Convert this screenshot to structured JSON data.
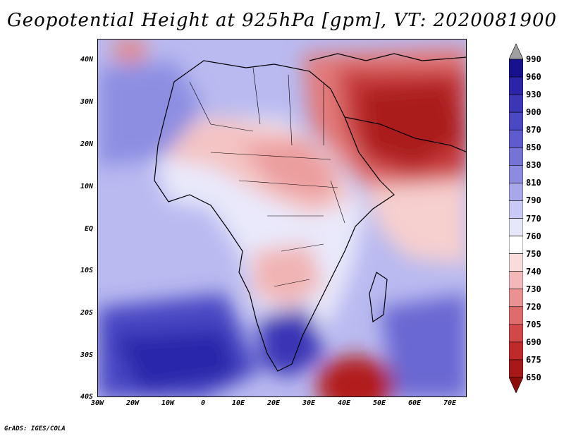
{
  "title": "Geopotential Height at 925hPa [gpm], VT: 2020081900",
  "credit": "GrADS: IGES/COLA",
  "lat_labels": [
    "40N",
    "30N",
    "20N",
    "10N",
    "EQ",
    "10S",
    "20S",
    "30S",
    "40S"
  ],
  "lon_labels": [
    "30W",
    "20W",
    "10W",
    "0",
    "10E",
    "20E",
    "30E",
    "40E",
    "50E",
    "60E",
    "70E"
  ],
  "colorbar": {
    "levels": [
      "990",
      "960",
      "930",
      "900",
      "870",
      "850",
      "830",
      "810",
      "790",
      "770",
      "760",
      "750",
      "740",
      "730",
      "720",
      "705",
      "690",
      "675",
      "650"
    ],
    "colors": [
      "#a0a0a0",
      "#16128f",
      "#2a25a8",
      "#3a36b6",
      "#4b48c3",
      "#5d5bcd",
      "#7473d6",
      "#8b8be0",
      "#a7a8ea",
      "#c8c9f4",
      "#e6e7fb",
      "#ffffff",
      "#fbdcdc",
      "#f3b8b8",
      "#ea9292",
      "#df6b6b",
      "#d24747",
      "#c12a2a",
      "#a81818",
      "#8c0c0c"
    ]
  },
  "field": {
    "variable": "Geopotential Height",
    "level": "925hPa",
    "units": "gpm",
    "valid_time": "2020081900"
  }
}
